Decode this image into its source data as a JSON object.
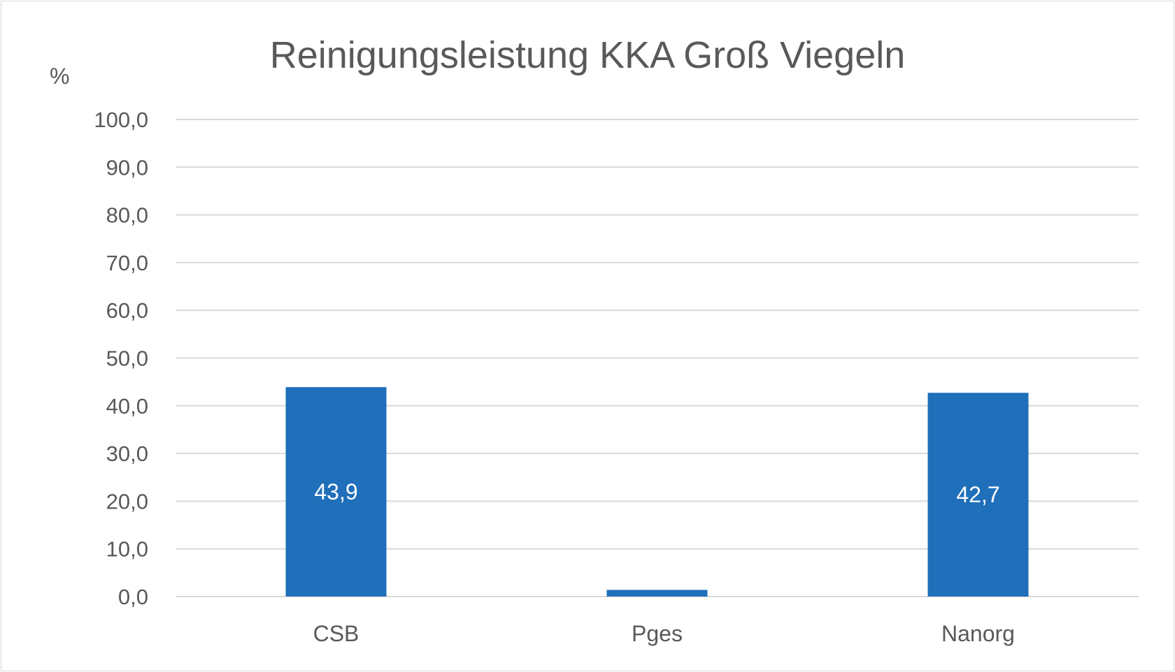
{
  "chart_data": {
    "type": "bar",
    "title": "Reinigungsleistung KKA Groß Viegeln",
    "ylabel": "%",
    "xlabel": "",
    "categories": [
      "CSB",
      "Pges",
      "Nanorg"
    ],
    "values": [
      43.9,
      1.4,
      42.7
    ],
    "data_labels": [
      "43,9",
      "",
      "42,7"
    ],
    "ylim": [
      0,
      100
    ],
    "ytick_values": [
      0,
      10,
      20,
      30,
      40,
      50,
      60,
      70,
      80,
      90,
      100
    ],
    "ytick_labels": [
      "0,0",
      "10,0",
      "20,0",
      "30,0",
      "40,0",
      "50,0",
      "60,0",
      "70,0",
      "80,0",
      "90,0",
      "100,0"
    ],
    "grid": true,
    "legend": "none",
    "bar_color": "#1f6fba",
    "grid_color": "#d9d9d9"
  }
}
